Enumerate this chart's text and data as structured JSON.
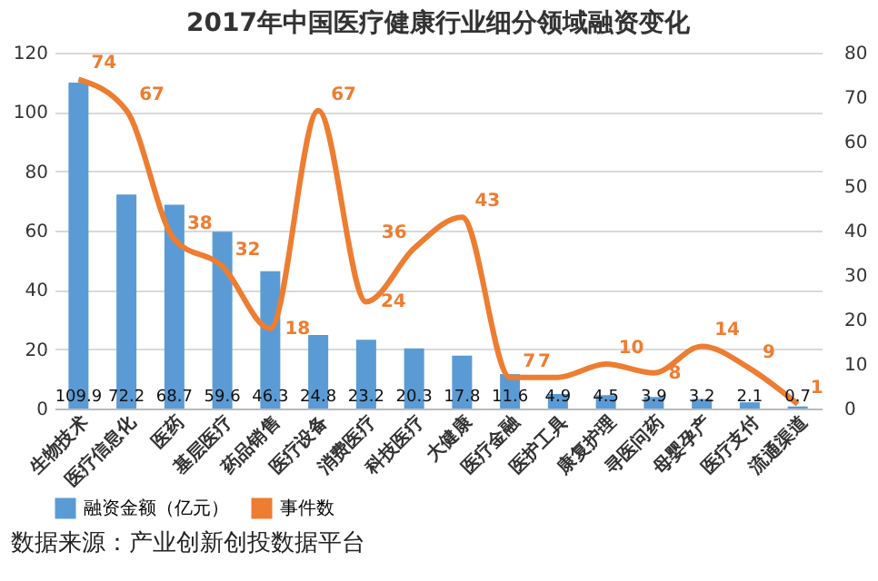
{
  "chart_data": {
    "type": "bar",
    "title": "2017年中国医疗健康行业细分领域融资变化",
    "categories": [
      "生物技术",
      "医疗信息化",
      "医药",
      "基层医疗",
      "药品销售",
      "医疗设备",
      "消费医疗",
      "科技医疗",
      "大健康",
      "医疗金融",
      "医护工具",
      "康复护理",
      "寻医问药",
      "母婴孕产",
      "医疗支付",
      "流通渠道"
    ],
    "series": [
      {
        "name": "融资金额（亿元）",
        "type": "bar",
        "color": "#5b9bd5",
        "values": [
          109.9,
          72.2,
          68.7,
          59.6,
          46.3,
          24.8,
          23.2,
          20.3,
          17.8,
          11.6,
          4.9,
          4.5,
          3.9,
          3.2,
          2.1,
          0.7
        ]
      },
      {
        "name": "事件数",
        "type": "line",
        "axis": "y2",
        "color": "#ed7d31",
        "values": [
          74,
          67,
          38,
          32,
          18,
          67,
          24,
          36,
          43,
          7,
          7,
          10,
          8,
          14,
          9,
          1
        ]
      }
    ],
    "ylim": [
      0,
      120
    ],
    "yticks": [
      0,
      20,
      40,
      60,
      80,
      100,
      120
    ],
    "y2lim": [
      0,
      80
    ],
    "y2ticks": [
      0,
      10,
      20,
      30,
      40,
      50,
      60,
      70,
      80
    ],
    "grid": "y",
    "legend": "bottom",
    "data_labels": true,
    "annotations": [
      "数据来源：产业创新创投数据平台"
    ]
  }
}
